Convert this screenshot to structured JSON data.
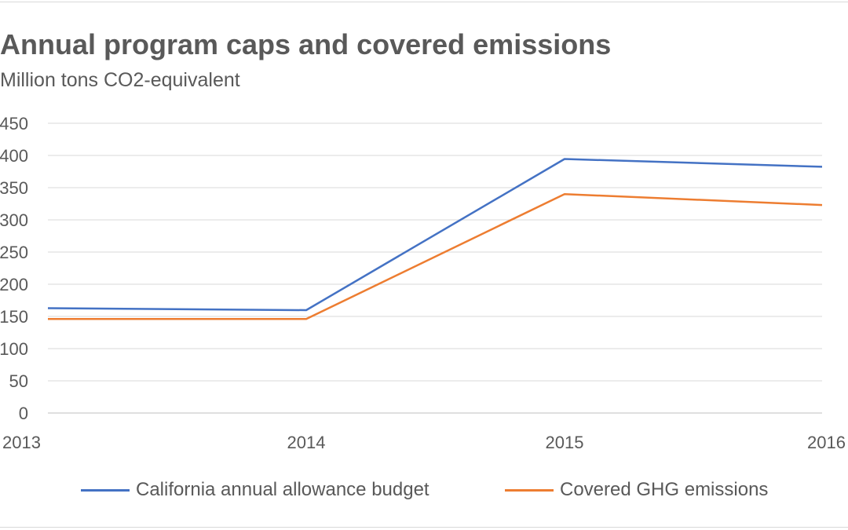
{
  "title": "Annual program caps and covered emissions",
  "subtitle": "Million tons CO2-equivalent",
  "chart_data": {
    "type": "line",
    "title": "Annual program caps and covered emissions",
    "subtitle": "Million tons CO2-equivalent",
    "x": [
      "2013",
      "2014",
      "2015",
      "2016"
    ],
    "ylim": [
      0,
      450
    ],
    "yticks": [
      0,
      50,
      100,
      150,
      200,
      250,
      300,
      350,
      400,
      450
    ],
    "ytick_labels": [
      "0",
      "50",
      "100",
      "150",
      "200",
      "250",
      "300",
      "350",
      "400",
      "450"
    ],
    "grid": "horizontal",
    "legend": "bottom",
    "series": [
      {
        "name": "California annual allowance budget",
        "color": "#4472c4",
        "values": [
          162.8,
          159.7,
          394.5,
          382.4
        ]
      },
      {
        "name": "Covered GHG emissions",
        "color": "#ed7d31",
        "values": [
          146,
          146,
          340,
          323
        ]
      }
    ]
  }
}
